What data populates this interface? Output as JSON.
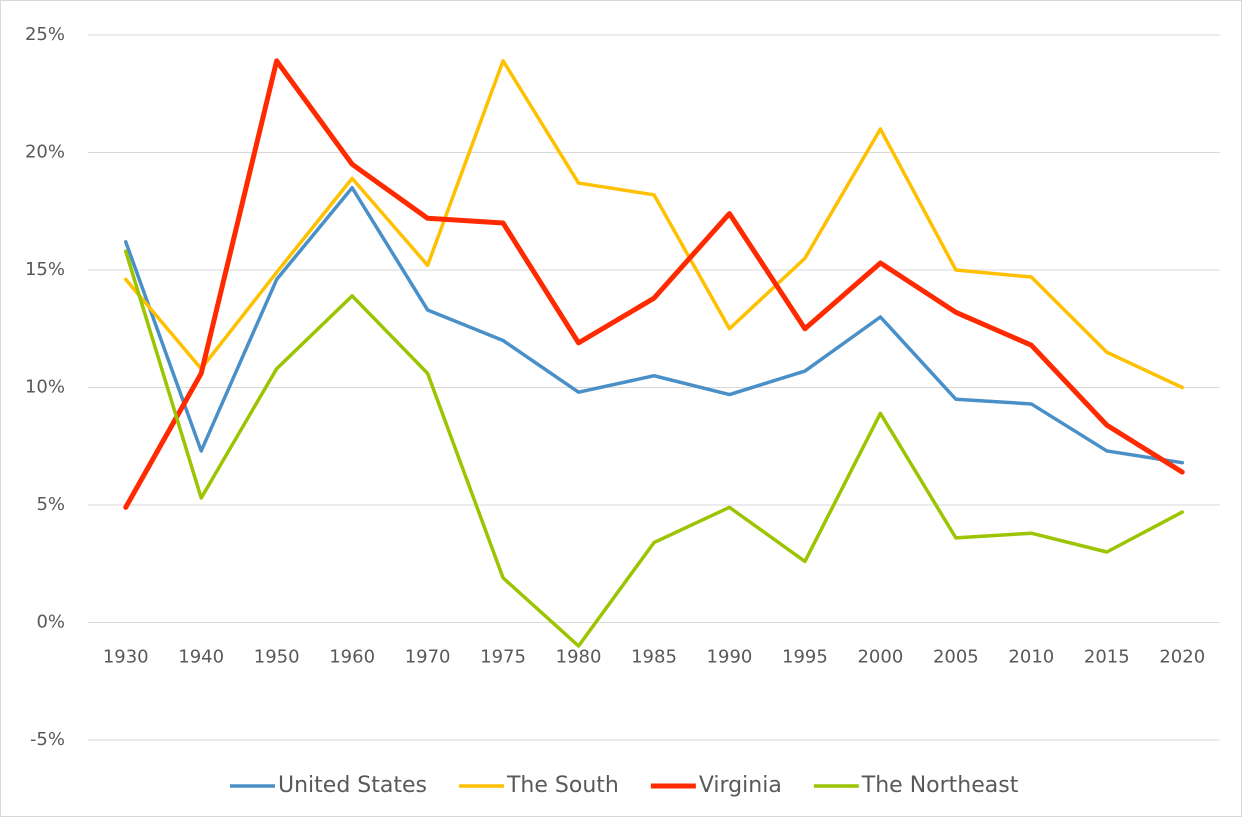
{
  "chart_data": {
    "type": "line",
    "categories": [
      "1930",
      "1940",
      "1950",
      "1960",
      "1970",
      "1975",
      "1980",
      "1985",
      "1990",
      "1995",
      "2000",
      "2005",
      "2010",
      "2015",
      "2020"
    ],
    "series": [
      {
        "name": "United States",
        "color": "#4a90c8",
        "values": [
          16.2,
          7.3,
          14.6,
          18.5,
          13.3,
          12.0,
          9.8,
          10.5,
          9.7,
          10.7,
          13.0,
          9.5,
          9.3,
          7.3,
          6.8
        ]
      },
      {
        "name": "The South",
        "color": "#ffc000",
        "values": [
          14.6,
          10.8,
          14.9,
          18.9,
          15.2,
          23.9,
          18.7,
          18.2,
          12.5,
          15.5,
          21.0,
          15.0,
          14.7,
          11.5,
          10.0
        ]
      },
      {
        "name": "Virginia",
        "color": "#ff2a00",
        "values": [
          4.9,
          10.6,
          23.9,
          19.5,
          17.2,
          17.0,
          11.9,
          13.8,
          17.4,
          12.5,
          15.3,
          13.2,
          11.8,
          8.4,
          6.4
        ]
      },
      {
        "name": "The Northeast",
        "color": "#9cc400",
        "values": [
          15.8,
          5.3,
          10.8,
          13.9,
          10.6,
          1.9,
          -1.0,
          3.4,
          4.9,
          2.6,
          8.9,
          3.6,
          3.8,
          3.0,
          4.7
        ]
      }
    ],
    "ylim": [
      -5,
      25
    ],
    "yticks": [
      {
        "value": -5,
        "label": "-5%"
      },
      {
        "value": 0,
        "label": "0%"
      },
      {
        "value": 5,
        "label": "5%"
      },
      {
        "value": 10,
        "label": "10%"
      },
      {
        "value": 15,
        "label": "15%"
      },
      {
        "value": 20,
        "label": "20%"
      },
      {
        "value": 25,
        "label": "25%"
      }
    ],
    "grid": true,
    "legend": "bottom"
  }
}
